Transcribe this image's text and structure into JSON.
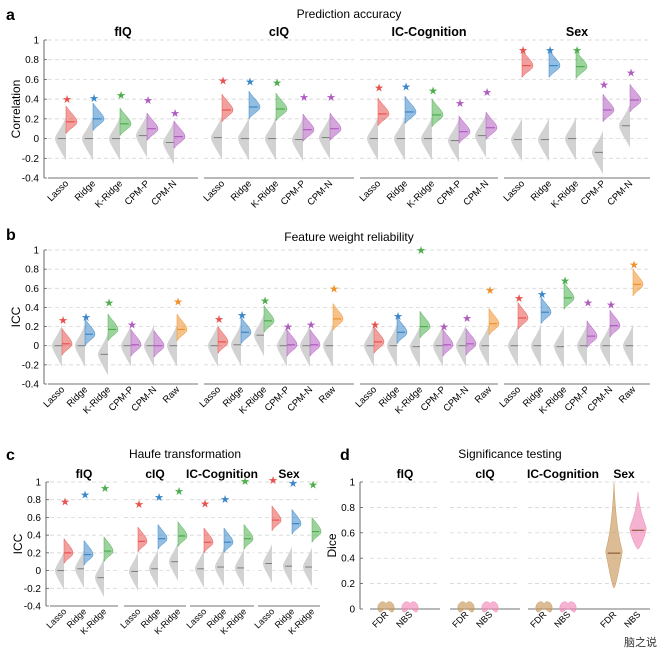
{
  "watermark": "脑之说",
  "chart_data": [
    {
      "type": "violin",
      "panel": "a",
      "title": "Prediction accuracy",
      "ylabel": "Correlation",
      "ylim": [
        -0.4,
        1
      ],
      "yticks": [
        "1",
        "0.8",
        "0.6",
        "0.4",
        "0.2",
        "0",
        "-0.2",
        "-0.4"
      ],
      "groups": [
        {
          "name": "fIQ",
          "methods": [
            {
              "label": "Lasso",
              "color": "#e8524f",
              "star": 0.4,
              "real": 0.17,
              "null": 0.0
            },
            {
              "label": "Ridge",
              "color": "#3a87c8",
              "star": 0.41,
              "real": 0.2,
              "null": 0.0
            },
            {
              "label": "K-Ridge",
              "color": "#4cae4c",
              "star": 0.44,
              "real": 0.15,
              "null": 0.0
            },
            {
              "label": "CPM-P",
              "color": "#b05cc0",
              "star": 0.39,
              "real": 0.1,
              "null": 0.03
            },
            {
              "label": "CPM-N",
              "color": "#b05cc0",
              "star": 0.26,
              "real": 0.02,
              "null": -0.04
            }
          ]
        },
        {
          "name": "cIQ",
          "methods": [
            {
              "label": "Lasso",
              "color": "#e8524f",
              "star": 0.59,
              "real": 0.29,
              "null": 0.01
            },
            {
              "label": "Ridge",
              "color": "#3a87c8",
              "star": 0.58,
              "real": 0.32,
              "null": 0.0
            },
            {
              "label": "K-Ridge",
              "color": "#4cae4c",
              "star": 0.57,
              "real": 0.3,
              "null": 0.0
            },
            {
              "label": "CPM-P",
              "color": "#b05cc0",
              "star": 0.42,
              "real": 0.09,
              "null": -0.01
            },
            {
              "label": "CPM-N",
              "color": "#b05cc0",
              "star": 0.42,
              "real": 0.1,
              "null": 0.01
            }
          ]
        },
        {
          "name": "IC-Cognition",
          "methods": [
            {
              "label": "Lasso",
              "color": "#e8524f",
              "star": 0.52,
              "real": 0.25,
              "null": 0.0
            },
            {
              "label": "Ridge",
              "color": "#3a87c8",
              "star": 0.53,
              "real": 0.27,
              "null": 0.0
            },
            {
              "label": "K-Ridge",
              "color": "#4cae4c",
              "star": 0.49,
              "real": 0.24,
              "null": 0.0
            },
            {
              "label": "CPM-P",
              "color": "#b05cc0",
              "star": 0.36,
              "real": 0.07,
              "null": -0.02
            },
            {
              "label": "CPM-N",
              "color": "#b05cc0",
              "star": 0.47,
              "real": 0.11,
              "null": 0.03
            }
          ]
        },
        {
          "name": "Sex",
          "methods": [
            {
              "label": "Lasso",
              "color": "#e8524f",
              "star": 0.9,
              "real": 0.74,
              "null": -0.01
            },
            {
              "label": "Ridge",
              "color": "#3a87c8",
              "star": 0.9,
              "real": 0.74,
              "null": -0.01
            },
            {
              "label": "K-Ridge",
              "color": "#4cae4c",
              "star": 0.9,
              "real": 0.73,
              "null": 0.0
            },
            {
              "label": "CPM-P",
              "color": "#b05cc0",
              "star": 0.55,
              "real": 0.29,
              "null": -0.14
            },
            {
              "label": "CPM-N",
              "color": "#b05cc0",
              "star": 0.67,
              "real": 0.39,
              "null": 0.13
            }
          ]
        }
      ]
    },
    {
      "type": "violin",
      "panel": "b",
      "title": "Feature weight reliability",
      "ylabel": "ICC",
      "ylim": [
        -0.4,
        1
      ],
      "yticks": [
        "1",
        "0.8",
        "0.6",
        "0.4",
        "0.2",
        "0",
        "-0.2",
        "-0.4"
      ],
      "groups": [
        {
          "name": "fIQ",
          "methods": [
            {
              "label": "Lasso",
              "color": "#e8524f",
              "star": 0.27,
              "real": 0.02,
              "null": 0.0
            },
            {
              "label": "Ridge",
              "color": "#3a87c8",
              "star": 0.3,
              "real": 0.12,
              "null": 0.0
            },
            {
              "label": "K-Ridge",
              "color": "#4cae4c",
              "star": 0.45,
              "real": 0.17,
              "null": -0.09
            },
            {
              "label": "CPM-P",
              "color": "#b05cc0",
              "star": 0.22,
              "real": 0.01,
              "null": 0.0
            },
            {
              "label": "CPM-N",
              "color": "#b05cc0",
              "star": null,
              "real": 0.0,
              "null": 0.0
            },
            {
              "label": "Raw",
              "color": "#f0902a",
              "star": 0.46,
              "real": 0.17,
              "null": 0.0
            }
          ]
        },
        {
          "name": "cIQ",
          "methods": [
            {
              "label": "Lasso",
              "color": "#e8524f",
              "star": 0.28,
              "real": 0.04,
              "null": 0.0
            },
            {
              "label": "Ridge",
              "color": "#3a87c8",
              "star": 0.32,
              "real": 0.14,
              "null": 0.01
            },
            {
              "label": "K-Ridge",
              "color": "#4cae4c",
              "star": 0.47,
              "real": 0.26,
              "null": 0.11
            },
            {
              "label": "CPM-P",
              "color": "#b05cc0",
              "star": 0.2,
              "real": 0.01,
              "null": 0.0
            },
            {
              "label": "CPM-N",
              "color": "#b05cc0",
              "star": 0.22,
              "real": 0.01,
              "null": 0.0
            },
            {
              "label": "Raw",
              "color": "#f0902a",
              "star": 0.6,
              "real": 0.28,
              "null": 0.0
            }
          ]
        },
        {
          "name": "IC-Cognition",
          "methods": [
            {
              "label": "Lasso",
              "color": "#e8524f",
              "star": 0.22,
              "real": 0.04,
              "null": 0.0
            },
            {
              "label": "Ridge",
              "color": "#3a87c8",
              "star": 0.31,
              "real": 0.14,
              "null": 0.0
            },
            {
              "label": "K-Ridge",
              "color": "#4cae4c",
              "star": 1.0,
              "real": 0.2,
              "null": -0.01
            },
            {
              "label": "CPM-P",
              "color": "#b05cc0",
              "star": 0.2,
              "real": 0.01,
              "null": 0.0
            },
            {
              "label": "CPM-N",
              "color": "#b05cc0",
              "star": 0.29,
              "real": 0.02,
              "null": 0.0
            },
            {
              "label": "Raw",
              "color": "#f0902a",
              "star": 0.58,
              "real": 0.23,
              "null": 0.0
            }
          ]
        },
        {
          "name": "Sex",
          "methods": [
            {
              "label": "Lasso",
              "color": "#e8524f",
              "star": 0.5,
              "real": 0.29,
              "null": 0.0
            },
            {
              "label": "Ridge",
              "color": "#3a87c8",
              "star": 0.54,
              "real": 0.35,
              "null": 0.0
            },
            {
              "label": "K-Ridge",
              "color": "#4cae4c",
              "star": 0.68,
              "real": 0.5,
              "null": -0.01
            },
            {
              "label": "CPM-P",
              "color": "#b05cc0",
              "star": 0.45,
              "real": 0.1,
              "null": 0.0
            },
            {
              "label": "CPM-N",
              "color": "#b05cc0",
              "star": 0.43,
              "real": 0.21,
              "null": 0.0
            },
            {
              "label": "Raw",
              "color": "#f0902a",
              "star": 0.85,
              "real": 0.64,
              "null": 0.0
            }
          ]
        }
      ]
    },
    {
      "type": "violin",
      "panel": "c",
      "title": "Haufe transformation",
      "ylabel": "ICC",
      "ylim": [
        -0.4,
        1
      ],
      "yticks": [
        "1",
        "0.8",
        "0.6",
        "0.4",
        "0.2",
        "0",
        "-0.2",
        "-0.4"
      ],
      "groups": [
        {
          "name": "fIQ",
          "methods": [
            {
              "label": "Lasso",
              "color": "#e8524f",
              "star": 0.78,
              "real": 0.2,
              "null": 0.0
            },
            {
              "label": "Ridge",
              "color": "#3a87c8",
              "star": 0.86,
              "real": 0.18,
              "null": 0.02
            },
            {
              "label": "K-Ridge",
              "color": "#4cae4c",
              "star": 0.93,
              "real": 0.22,
              "null": -0.08
            }
          ]
        },
        {
          "name": "cIQ",
          "methods": [
            {
              "label": "Lasso",
              "color": "#e8524f",
              "star": 0.75,
              "real": 0.33,
              "null": -0.01
            },
            {
              "label": "Ridge",
              "color": "#3a87c8",
              "star": 0.83,
              "real": 0.36,
              "null": 0.02
            },
            {
              "label": "K-Ridge",
              "color": "#4cae4c",
              "star": 0.9,
              "real": 0.39,
              "null": 0.1
            }
          ]
        },
        {
          "name": "IC-Cognition",
          "methods": [
            {
              "label": "Lasso",
              "color": "#e8524f",
              "star": 0.76,
              "real": 0.32,
              "null": 0.02
            },
            {
              "label": "Ridge",
              "color": "#3a87c8",
              "star": 0.81,
              "real": 0.32,
              "null": 0.04
            },
            {
              "label": "K-Ridge",
              "color": "#4cae4c",
              "star": 1.01,
              "real": 0.36,
              "null": 0.03
            }
          ]
        },
        {
          "name": "Sex",
          "methods": [
            {
              "label": "Lasso",
              "color": "#e8524f",
              "star": 1.02,
              "real": 0.57,
              "null": 0.08
            },
            {
              "label": "Ridge",
              "color": "#3a87c8",
              "star": 0.99,
              "real": 0.53,
              "null": 0.05
            },
            {
              "label": "K-Ridge",
              "color": "#4cae4c",
              "star": 0.97,
              "real": 0.44,
              "null": 0.04
            }
          ]
        }
      ]
    },
    {
      "type": "violin",
      "panel": "d",
      "title": "Significance testing",
      "ylabel": "Dice",
      "ylim": [
        0,
        1
      ],
      "yticks": [
        "1",
        "0.8",
        "0.6",
        "0.4",
        "0.2",
        "0"
      ],
      "groups": [
        {
          "name": "fIQ",
          "methods": [
            {
              "label": "FDR",
              "color": "#c9985a",
              "real": 0.0,
              "extent": 0.04
            },
            {
              "label": "NBS",
              "color": "#ef8ab8",
              "real": 0.0,
              "extent": 0.04
            }
          ]
        },
        {
          "name": "cIQ",
          "methods": [
            {
              "label": "FDR",
              "color": "#c9985a",
              "real": 0.0,
              "extent": 0.04
            },
            {
              "label": "NBS",
              "color": "#ef8ab8",
              "real": 0.0,
              "extent": 0.04
            }
          ]
        },
        {
          "name": "IC-Cognition",
          "methods": [
            {
              "label": "FDR",
              "color": "#c9985a",
              "real": 0.0,
              "extent": 0.04
            },
            {
              "label": "NBS",
              "color": "#ef8ab8",
              "real": 0.0,
              "extent": 0.04
            }
          ]
        },
        {
          "name": "Sex",
          "methods": [
            {
              "label": "FDR",
              "color": "#c9985a",
              "real": 0.44,
              "extent": 0.55
            },
            {
              "label": "NBS",
              "color": "#ef8ab8",
              "real": 0.62,
              "extent": 0.3
            }
          ]
        }
      ]
    }
  ]
}
